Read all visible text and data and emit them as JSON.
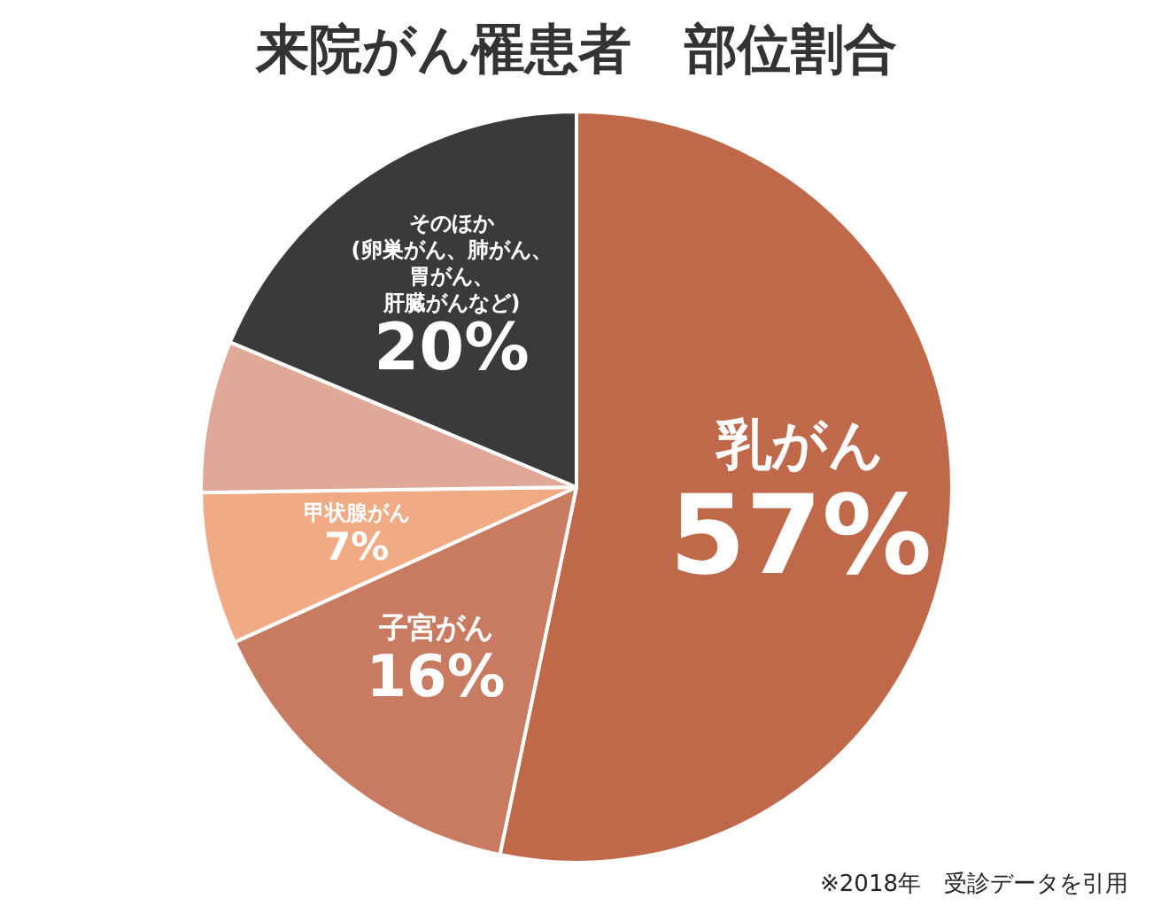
{
  "chart_data": {
    "type": "pie",
    "title": "来院がん罹患者　部位割合",
    "categories": [
      "乳がん",
      "子宮がん",
      "甲状腺がん",
      null,
      "そのほか(卵巣がん、肺がん、胃がん、肝臓がんなど)"
    ],
    "values": [
      57,
      16,
      7,
      7,
      20
    ],
    "value_labels": [
      "57%",
      "16%",
      "7%",
      null,
      "20%"
    ],
    "colors": [
      "#c0694a",
      "#c97b62",
      "#f0aa84",
      "#e0a898",
      "#3a3a3a"
    ],
    "annotations": [
      "※2018年　受診データを引用"
    ],
    "legend": false
  }
}
